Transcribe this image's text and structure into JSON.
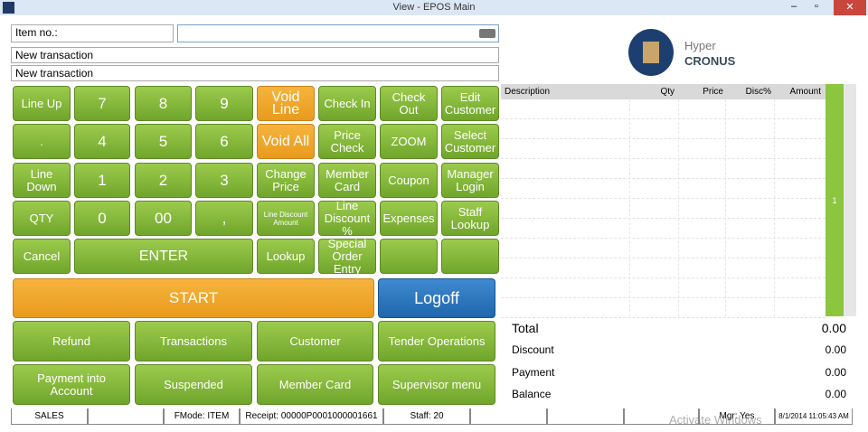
{
  "window": {
    "title": "View - EPOS Main"
  },
  "item_no": {
    "label": "Item no.:"
  },
  "info_lines": [
    "New transaction",
    "New transaction"
  ],
  "keypad": [
    [
      "Line Up",
      "7",
      "8",
      "9",
      "Void Line",
      "Check In",
      "Check Out",
      "Edit Customer"
    ],
    [
      ".",
      "4",
      "5",
      "6",
      "Void All",
      "Price Check",
      "ZOOM",
      "Select Customer"
    ],
    [
      "Line Down",
      "1",
      "2",
      "3",
      "Change Price",
      "Member Card",
      "Coupon",
      "Manager Login"
    ],
    [
      "QTY",
      "0",
      "00",
      ",",
      "Line Discount Amount",
      "Line Discount %",
      "Expenses",
      "Staff Lookup"
    ],
    [
      "Cancel",
      "ENTER",
      "Lookup",
      "Special Order Entry"
    ]
  ],
  "start": "START",
  "logoff": "Logoff",
  "menu": [
    [
      "Refund",
      "Transactions",
      "Customer",
      "Tender Operations"
    ],
    [
      "Payment into Account",
      "Suspended",
      "Member Card",
      "Supervisor menu"
    ]
  ],
  "logo": {
    "line1": "Hyper",
    "line2": "CRONUS"
  },
  "table": {
    "columns": [
      "Description",
      "Qty",
      "Price",
      "Disc%",
      "Amount"
    ],
    "scroll_label": "1"
  },
  "totals": [
    {
      "label": "Total",
      "value": "0.00"
    },
    {
      "label": "Discount",
      "value": "0.00"
    },
    {
      "label": "Payment",
      "value": "0.00"
    },
    {
      "label": "Balance",
      "value": "0.00"
    }
  ],
  "status_bar": {
    "mode": "SALES",
    "fmode": "FMode: ITEM",
    "receipt": "Receipt: 00000P0001000001661",
    "staff": "Staff: 20",
    "manager": "Mgr: Yes",
    "datetime": "8/1/2014 11:05:43 AM"
  },
  "watermark": "Activate Windows"
}
